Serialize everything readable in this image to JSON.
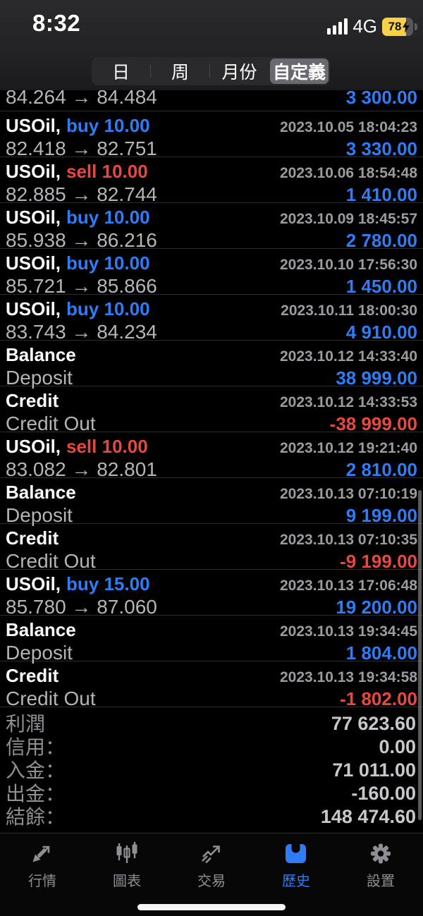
{
  "status_bar": {
    "time": "8:32",
    "network": "4G",
    "battery_percent": "78",
    "signal_bars": 4,
    "charging": true
  },
  "period_tabs": {
    "items": [
      {
        "label": "日",
        "selected": false
      },
      {
        "label": "周",
        "selected": false
      },
      {
        "label": "月份",
        "selected": false
      },
      {
        "label": "自定義",
        "selected": true
      }
    ]
  },
  "history": {
    "partial_row": {
      "detail": "84.264 → 84.484",
      "profit": "3 300.00",
      "profit_color": "blue"
    },
    "rows": [
      {
        "title": "USOil,",
        "side": "buy 10.00",
        "side_color": "blue",
        "timestamp": "2023.10.05 18:04:23",
        "detail": "82.418 → 82.751",
        "profit": "3 330.00",
        "profit_color": "blue"
      },
      {
        "title": "USOil,",
        "side": "sell 10.00",
        "side_color": "red",
        "timestamp": "2023.10.06 18:54:48",
        "detail": "82.885 → 82.744",
        "profit": "1 410.00",
        "profit_color": "blue"
      },
      {
        "title": "USOil,",
        "side": "buy 10.00",
        "side_color": "blue",
        "timestamp": "2023.10.09 18:45:57",
        "detail": "85.938 → 86.216",
        "profit": "2 780.00",
        "profit_color": "blue"
      },
      {
        "title": "USOil,",
        "side": "buy 10.00",
        "side_color": "blue",
        "timestamp": "2023.10.10 17:56:30",
        "detail": "85.721 → 85.866",
        "profit": "1 450.00",
        "profit_color": "blue"
      },
      {
        "title": "USOil,",
        "side": "buy 10.00",
        "side_color": "blue",
        "timestamp": "2023.10.11 18:00:30",
        "detail": "83.743 → 84.234",
        "profit": "4 910.00",
        "profit_color": "blue"
      },
      {
        "title": "Balance",
        "side": "",
        "side_color": "",
        "timestamp": "2023.10.12 14:33:40",
        "detail": "Deposit",
        "profit": "38 999.00",
        "profit_color": "blue"
      },
      {
        "title": "Credit",
        "side": "",
        "side_color": "",
        "timestamp": "2023.10.12 14:33:53",
        "detail": "Credit Out",
        "profit": "-38 999.00",
        "profit_color": "red"
      },
      {
        "title": "USOil,",
        "side": "sell 10.00",
        "side_color": "red",
        "timestamp": "2023.10.12 19:21:40",
        "detail": "83.082 → 82.801",
        "profit": "2 810.00",
        "profit_color": "blue"
      },
      {
        "title": "Balance",
        "side": "",
        "side_color": "",
        "timestamp": "2023.10.13 07:10:19",
        "detail": "Deposit",
        "profit": "9 199.00",
        "profit_color": "blue"
      },
      {
        "title": "Credit",
        "side": "",
        "side_color": "",
        "timestamp": "2023.10.13 07:10:35",
        "detail": "Credit Out",
        "profit": "-9 199.00",
        "profit_color": "red"
      },
      {
        "title": "USOil,",
        "side": "buy 15.00",
        "side_color": "blue",
        "timestamp": "2023.10.13 17:06:48",
        "detail": "85.780 → 87.060",
        "profit": "19 200.00",
        "profit_color": "blue"
      },
      {
        "title": "Balance",
        "side": "",
        "side_color": "",
        "timestamp": "2023.10.13 19:34:45",
        "detail": "Deposit",
        "profit": "1 804.00",
        "profit_color": "blue"
      },
      {
        "title": "Credit",
        "side": "",
        "side_color": "",
        "timestamp": "2023.10.13 19:34:58",
        "detail": "Credit Out",
        "profit": "-1 802.00",
        "profit_color": "red"
      }
    ]
  },
  "summary": {
    "rows": [
      {
        "label": "利潤",
        "value": "77 623.60"
      },
      {
        "label": "信用：",
        "value": "0.00"
      },
      {
        "label": "入金：",
        "value": "71 011.00"
      },
      {
        "label": "出金：",
        "value": "-160.00"
      },
      {
        "label": "結餘：",
        "value": "148 474.60"
      }
    ]
  },
  "tab_bar": {
    "items": [
      {
        "label": "行情",
        "icon": "quotes-arrows-icon",
        "selected": false
      },
      {
        "label": "圖表",
        "icon": "candlestick-icon",
        "selected": false
      },
      {
        "label": "交易",
        "icon": "trade-arrow-icon",
        "selected": false
      },
      {
        "label": "歷史",
        "icon": "history-box-icon",
        "selected": true
      },
      {
        "label": "設置",
        "icon": "gear-icon",
        "selected": false
      }
    ]
  },
  "colors": {
    "accent_blue": "#2e7cf7",
    "sell_red": "#e8483e",
    "battery_yellow": "#f7d148"
  }
}
